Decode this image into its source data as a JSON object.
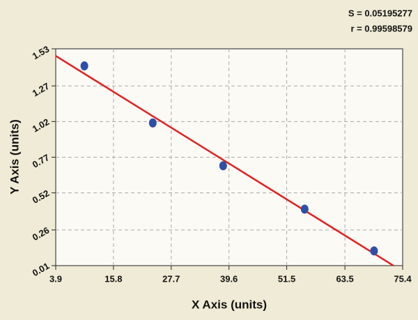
{
  "chart_data": {
    "type": "scatter",
    "annotations": [
      "S = 0.05195277",
      "r = 0.99598579"
    ],
    "x_label": "X Axis (units)",
    "y_label": "Y Axis (units)",
    "xlim": [
      3.9,
      75.4
    ],
    "xticks": [
      3.9,
      15.8,
      27.7,
      39.6,
      51.5,
      63.5,
      75.4
    ],
    "ylim": [
      0.01,
      1.53
    ],
    "yticks": [
      0.01,
      0.26,
      0.52,
      0.77,
      1.02,
      1.27,
      1.53
    ],
    "grid": true,
    "series": [
      {
        "type": "scatter",
        "color": "#2f4fa6",
        "x": [
          9.8,
          23.9,
          38.4,
          55.2,
          69.5
        ],
        "values": [
          1.41,
          1.01,
          0.71,
          0.406,
          0.113
        ]
      },
      {
        "type": "line",
        "color": "#e02020",
        "x": [
          3.9,
          73.5
        ],
        "values": [
          1.48,
          0.01
        ]
      }
    ]
  }
}
